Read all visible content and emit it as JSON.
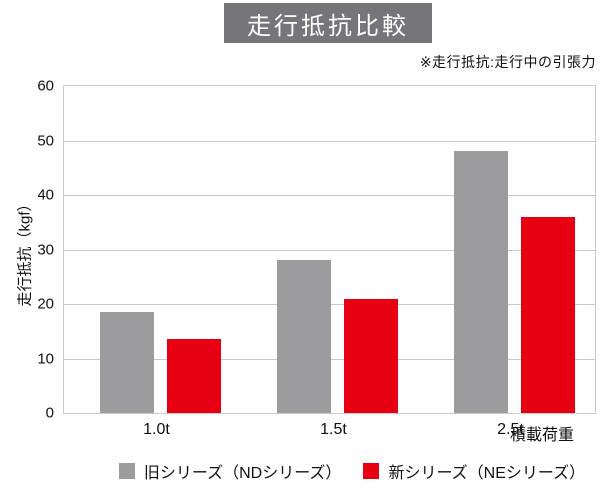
{
  "title": "走行抵抗比較",
  "note": "※走行抵抗:走行中の引張力",
  "chart_data": {
    "type": "bar",
    "categories": [
      "1.0t",
      "1.5t",
      "2.5t"
    ],
    "series": [
      {
        "name": "旧シリーズ（NDシリーズ）",
        "color": "#9c9c9e",
        "values": [
          18.5,
          28,
          48
        ]
      },
      {
        "name": "新シリーズ（NEシリーズ）",
        "color": "#e60012",
        "values": [
          13.5,
          21,
          36
        ]
      }
    ],
    "title": "走行抵抗比較",
    "xlabel": "積載荷重",
    "ylabel": "走行抵抗（kgf）",
    "ylim": [
      0,
      60
    ],
    "ytick_step": 10,
    "grid": true,
    "legend_position": "bottom"
  },
  "colors": {
    "title_bg": "#76767a",
    "title_text": "#ffffff",
    "grid": "#c9c9cb",
    "bar_old": "#9c9c9e",
    "bar_new": "#e60012",
    "text": "#111111"
  }
}
